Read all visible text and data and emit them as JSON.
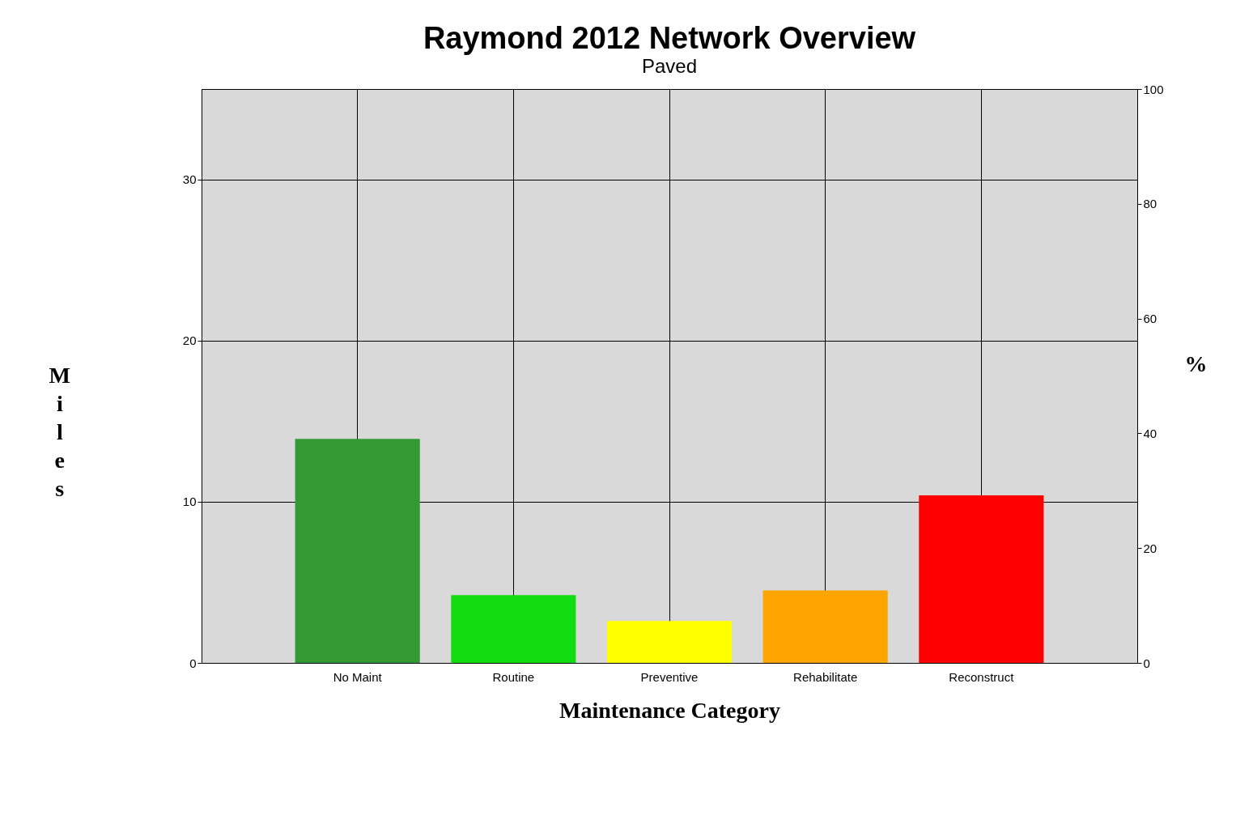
{
  "chart_data": {
    "type": "bar",
    "title": "Raymond 2012 Network Overview",
    "subtitle": "Paved",
    "xlabel": "Maintenance Category",
    "ylabel": "Miles",
    "y2label": "%",
    "categories": [
      "No Maint",
      "Routine",
      "Preventive",
      "Rehabilitate",
      "Reconstruct"
    ],
    "values": [
      13.9,
      4.2,
      2.6,
      4.5,
      10.4
    ],
    "colors": [
      "#339933",
      "#11dd11",
      "#ffff00",
      "#ffa500",
      "#ff0000"
    ],
    "ylim": [
      0,
      35.6
    ],
    "yticks": [
      0,
      10,
      20,
      30
    ],
    "y2lim": [
      0,
      100
    ],
    "y2ticks": [
      0,
      20,
      40,
      60,
      80,
      100
    ],
    "grid": true
  }
}
